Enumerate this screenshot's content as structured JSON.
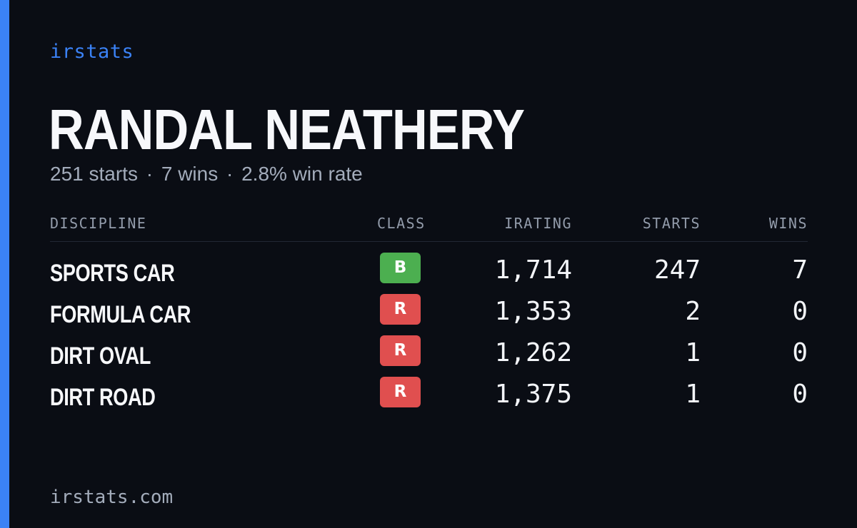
{
  "brand": "irstats",
  "driver": {
    "name": "RANDAL NEATHERY",
    "summary": {
      "starts": "251 starts",
      "wins": "7 wins",
      "win_rate": "2.8% win rate",
      "separator": "·"
    }
  },
  "table": {
    "headers": {
      "discipline": "DISCIPLINE",
      "class": "CLASS",
      "irating": "IRATING",
      "starts": "STARTS",
      "wins": "WINS"
    },
    "rows": [
      {
        "discipline": "SPORTS CAR",
        "class": "B",
        "class_color": "#4caf50",
        "irating": "1,714",
        "starts": "247",
        "wins": "7"
      },
      {
        "discipline": "FORMULA CAR",
        "class": "R",
        "class_color": "#e04f4f",
        "irating": "1,353",
        "starts": "2",
        "wins": "0"
      },
      {
        "discipline": "DIRT OVAL",
        "class": "R",
        "class_color": "#e04f4f",
        "irating": "1,262",
        "starts": "1",
        "wins": "0"
      },
      {
        "discipline": "DIRT ROAD",
        "class": "R",
        "class_color": "#e04f4f",
        "irating": "1,375",
        "starts": "1",
        "wins": "0"
      }
    ]
  },
  "footer": {
    "url": "irstats.com"
  },
  "colors": {
    "accent": "#3b82f6",
    "background": "#0a0d14"
  }
}
